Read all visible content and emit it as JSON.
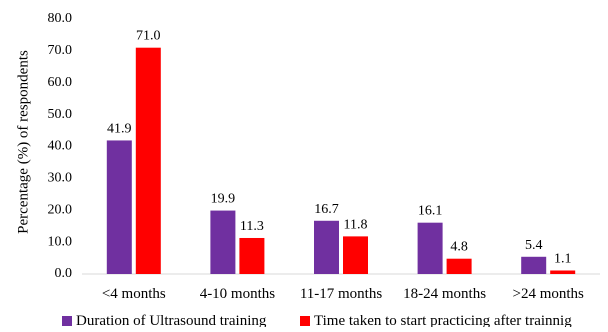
{
  "chart_data": {
    "type": "bar",
    "title": "",
    "xlabel": "",
    "ylabel": "Percentage (%) of respondents",
    "ylim": [
      0,
      80
    ],
    "yticks": [
      "0.0",
      "10.0",
      "20.0",
      "30.0",
      "40.0",
      "50.0",
      "60.0",
      "70.0",
      "80.0"
    ],
    "grid": false,
    "legend_position": "bottom",
    "categories": [
      "<4 months",
      "4-10 months",
      "11-17 months",
      "18-24 months",
      ">24 months"
    ],
    "series": [
      {
        "name": "Duration of Ultrasound training",
        "color": "#7030A0",
        "values": [
          41.9,
          19.9,
          16.7,
          16.1,
          5.4
        ],
        "labels": [
          "41.9",
          "19.9",
          "16.7",
          "16.1",
          "5.4"
        ]
      },
      {
        "name": "Time taken to start practicing after trainnig",
        "color": "#FF0000",
        "values": [
          71.0,
          11.3,
          11.8,
          4.8,
          1.1
        ],
        "labels": [
          "71.0",
          "11.3",
          "11.8",
          "4.8",
          "1.1"
        ]
      }
    ]
  }
}
